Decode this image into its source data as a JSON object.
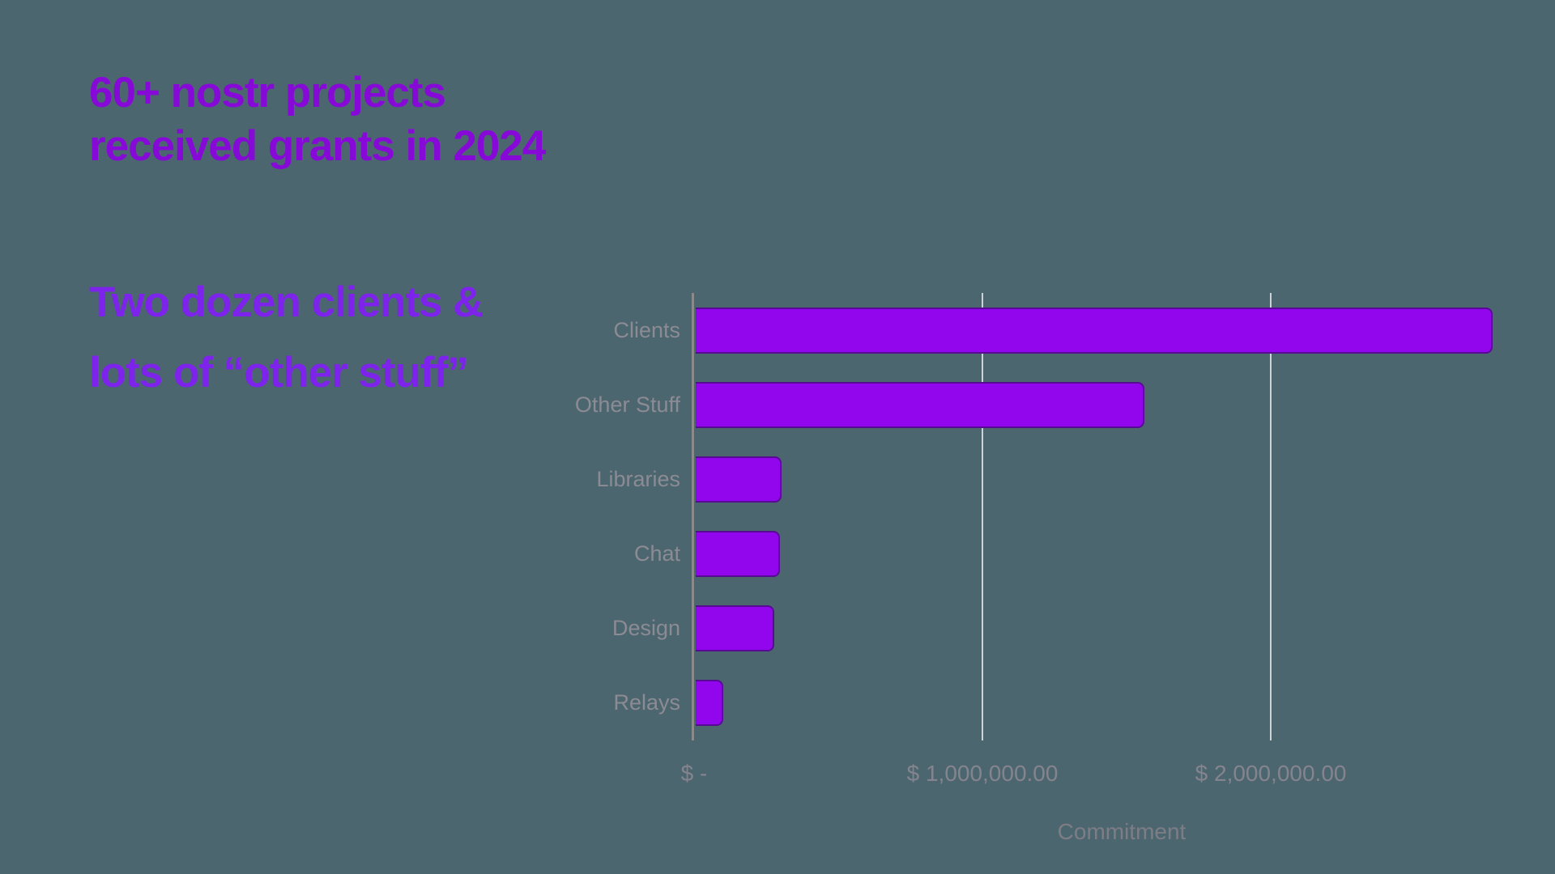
{
  "heading": {
    "line1": "60+ nostr projects",
    "line2": "received grants in 2024"
  },
  "subheading": {
    "line1": "Two dozen clients &",
    "line2": "lots of “other stuff”"
  },
  "chart_data": {
    "type": "bar",
    "orientation": "horizontal",
    "categories": [
      "Clients",
      "Other Stuff",
      "Libraries",
      "Chat",
      "Design",
      "Relays"
    ],
    "values": [
      2750000,
      1550000,
      295000,
      290000,
      270000,
      95000
    ],
    "title": "",
    "xlabel": "Commitment",
    "ylabel": "",
    "xlim": [
      0,
      2966000
    ],
    "x_ticks": [
      {
        "value": 0,
        "label": "$ -"
      },
      {
        "value": 1000000,
        "label": "$ 1,000,000.00"
      },
      {
        "value": 2000000,
        "label": "$ 2,000,000.00"
      }
    ],
    "grid": "vertical-gridlines-at-ticks",
    "legend": "none"
  },
  "colors": {
    "background": "#4C6670",
    "bar_fill": "#9106EC",
    "bar_outline": "#28104B",
    "heading_text": "#8609D8",
    "subheading_text": "#7D23EB",
    "category_label_text": "#8B8B94",
    "tick_label_text": "#84848E",
    "axis_title_text": "#7D7D85",
    "axis_line": "#8A8A8A",
    "gridline": "#CDD2D6"
  }
}
